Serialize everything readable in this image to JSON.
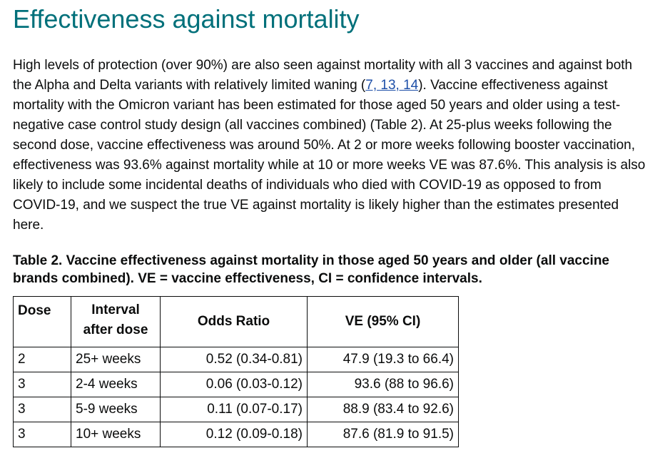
{
  "heading": "Effectiveness against mortality",
  "paragraph": {
    "before_link": "High levels of protection (over 90%) are also seen against mortality with all 3 vaccines and against both the Alpha and Delta variants with relatively limited waning (",
    "link_text": "7, 13, 14",
    "after_link": "). Vaccine effectiveness against mortality with the Omicron variant has been estimated for those aged 50 years and older using a test-negative case control study design (all vaccines combined) (Table 2). At 25-plus weeks following the second dose, vaccine effectiveness was around 50%. At 2 or more weeks following booster vaccination, effectiveness was 93.6% against mortality while at 10 or more weeks VE was 87.6%. This analysis is also likely to include some incidental deaths of individuals who died with COVID-19 as opposed to from COVID-19, and we suspect the true VE against mortality is likely higher than the estimates presented here."
  },
  "table_caption": "Table 2. Vaccine effectiveness against mortality in those aged 50 years and older (all vaccine brands combined). VE = vaccine effectiveness, CI = confidence intervals.",
  "table": {
    "headers": {
      "dose": "Dose",
      "interval_line1": "Interval",
      "interval_line2": "after dose",
      "odds_ratio": "Odds Ratio",
      "ve": "VE (95% CI)"
    },
    "rows": [
      {
        "dose": "2",
        "interval": "25+ weeks",
        "odds_ratio": "0.52 (0.34-0.81)",
        "ve": "47.9 (19.3 to 66.4)"
      },
      {
        "dose": "3",
        "interval": "2-4 weeks",
        "odds_ratio": "0.06 (0.03-0.12)",
        "ve": "93.6 (88 to 96.6)"
      },
      {
        "dose": "3",
        "interval": "5-9 weeks",
        "odds_ratio": "0.11 (0.07-0.17)",
        "ve": "88.9 (83.4 to 92.6)"
      },
      {
        "dose": "3",
        "interval": "10+ weeks",
        "odds_ratio": "0.12 (0.09-0.18)",
        "ve": "87.6 (81.9 to 91.5)"
      }
    ]
  },
  "colors": {
    "heading": "#00707a",
    "link": "#1d4fa8",
    "text": "#0b0c0c"
  }
}
